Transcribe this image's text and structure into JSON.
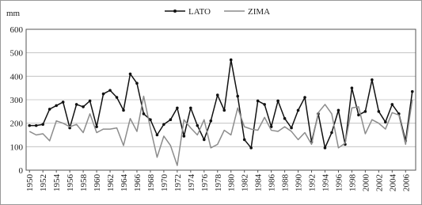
{
  "chart_data": {
    "type": "line",
    "y_label": "mm",
    "x": [
      1950,
      1951,
      1952,
      1953,
      1954,
      1955,
      1956,
      1957,
      1958,
      1959,
      1960,
      1961,
      1962,
      1963,
      1964,
      1965,
      1966,
      1967,
      1968,
      1969,
      1970,
      1971,
      1972,
      1973,
      1974,
      1975,
      1976,
      1977,
      1978,
      1979,
      1980,
      1981,
      1982,
      1983,
      1984,
      1985,
      1986,
      1987,
      1988,
      1989,
      1990,
      1991,
      1992,
      1993,
      1994,
      1995,
      1996,
      1997,
      1998,
      1999,
      2000,
      2001,
      2002,
      2003,
      2004,
      2005,
      2006,
      2007
    ],
    "series": [
      {
        "name": "LATO",
        "color": "#111111",
        "markers": true,
        "values": [
          190,
          190,
          195,
          260,
          275,
          290,
          180,
          280,
          270,
          295,
          185,
          325,
          340,
          310,
          255,
          410,
          370,
          240,
          215,
          150,
          195,
          215,
          265,
          145,
          265,
          190,
          130,
          210,
          320,
          255,
          470,
          315,
          130,
          95,
          295,
          280,
          185,
          295,
          220,
          180,
          255,
          310,
          120,
          240,
          95,
          160,
          255,
          110,
          350,
          235,
          250,
          385,
          250,
          205,
          280,
          240,
          125,
          335
        ]
      },
      {
        "name": "ZIMA",
        "color": "#8c8c8c",
        "markers": false,
        "values": [
          165,
          150,
          155,
          125,
          210,
          200,
          185,
          195,
          160,
          240,
          160,
          175,
          175,
          180,
          105,
          220,
          165,
          315,
          180,
          55,
          145,
          105,
          20,
          215,
          180,
          150,
          215,
          95,
          110,
          170,
          150,
          265,
          185,
          175,
          170,
          225,
          170,
          165,
          185,
          165,
          130,
          160,
          110,
          245,
          280,
          240,
          95,
          115,
          265,
          270,
          155,
          215,
          200,
          175,
          245,
          235,
          110,
          300
        ]
      }
    ],
    "xlim": [
      1949.5,
      2007.5
    ],
    "xticks": [
      1950,
      1952,
      1954,
      1956,
      1958,
      1960,
      1962,
      1964,
      1966,
      1968,
      1970,
      1972,
      1974,
      1976,
      1978,
      1980,
      1982,
      1984,
      1986,
      1988,
      1990,
      1992,
      1994,
      1996,
      1998,
      2000,
      2002,
      2004,
      2006
    ],
    "ylim": [
      0,
      600
    ],
    "yticks": [
      0,
      100,
      200,
      300,
      400,
      500,
      600
    ],
    "grid": true
  }
}
